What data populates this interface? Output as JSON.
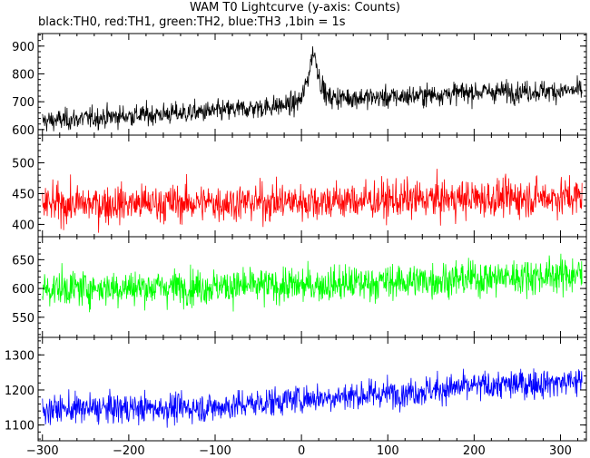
{
  "title": "WAM T0 Lightcurve (y-axis: Counts)",
  "subtitle": "black:TH0, red:TH1, green:TH2, blue:TH3 ,1bin = 1s",
  "chart_data": [
    {
      "type": "line",
      "series_name": "TH0",
      "color": "#000000",
      "xlim": [
        -305,
        330
      ],
      "ylim": [
        580,
        945
      ],
      "yticks": [
        600,
        700,
        800,
        900
      ],
      "profile": [
        [
          -300,
          630
        ],
        [
          -200,
          650
        ],
        [
          -100,
          665
        ],
        [
          -10,
          690
        ],
        [
          0,
          710
        ],
        [
          8,
          790
        ],
        [
          13,
          880
        ],
        [
          16,
          860
        ],
        [
          22,
          770
        ],
        [
          30,
          715
        ],
        [
          100,
          715
        ],
        [
          200,
          735
        ],
        [
          325,
          740
        ]
      ],
      "noise": 35,
      "grid": false
    },
    {
      "type": "line",
      "series_name": "TH1",
      "color": "#ff0000",
      "xlim": [
        -305,
        330
      ],
      "ylim": [
        380,
        545
      ],
      "yticks": [
        400,
        450,
        500
      ],
      "profile": [
        [
          -300,
          432
        ],
        [
          0,
          437
        ],
        [
          325,
          445
        ]
      ],
      "noise": 28,
      "grid": false
    },
    {
      "type": "line",
      "series_name": "TH2",
      "color": "#00ff00",
      "xlim": [
        -305,
        330
      ],
      "ylim": [
        515,
        690
      ],
      "yticks": [
        550,
        600,
        650
      ],
      "profile": [
        [
          -300,
          600
        ],
        [
          0,
          605
        ],
        [
          325,
          625
        ]
      ],
      "noise": 28,
      "grid": false
    },
    {
      "type": "line",
      "series_name": "TH3",
      "color": "#0000ff",
      "xlim": [
        -305,
        330
      ],
      "ylim": [
        1055,
        1350
      ],
      "yticks": [
        1100,
        1200,
        1300
      ],
      "xticks": [
        -300,
        -200,
        -100,
        0,
        100,
        200,
        300
      ],
      "profile": [
        [
          -300,
          1145
        ],
        [
          -100,
          1150
        ],
        [
          0,
          1175
        ],
        [
          100,
          1190
        ],
        [
          200,
          1210
        ],
        [
          325,
          1225
        ]
      ],
      "noise": 38,
      "grid": false
    }
  ]
}
